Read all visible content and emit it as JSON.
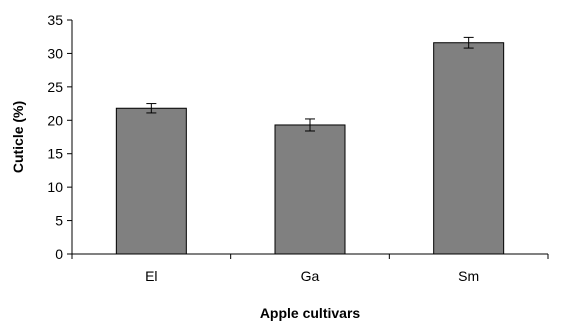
{
  "chart_data": {
    "type": "bar",
    "categories": [
      "El",
      "Ga",
      "Sm"
    ],
    "values": [
      21.8,
      19.3,
      31.6
    ],
    "errors": [
      0.7,
      0.9,
      0.8
    ],
    "title": "",
    "xlabel": "Apple cultivars",
    "ylabel": "Cuticle (%)",
    "ylim": [
      0,
      35
    ],
    "yticks": [
      0,
      5,
      10,
      15,
      20,
      25,
      30,
      35
    ],
    "grid": false,
    "legend": "none",
    "bar_color": "#808080",
    "bar_edge_color": "#000000"
  }
}
